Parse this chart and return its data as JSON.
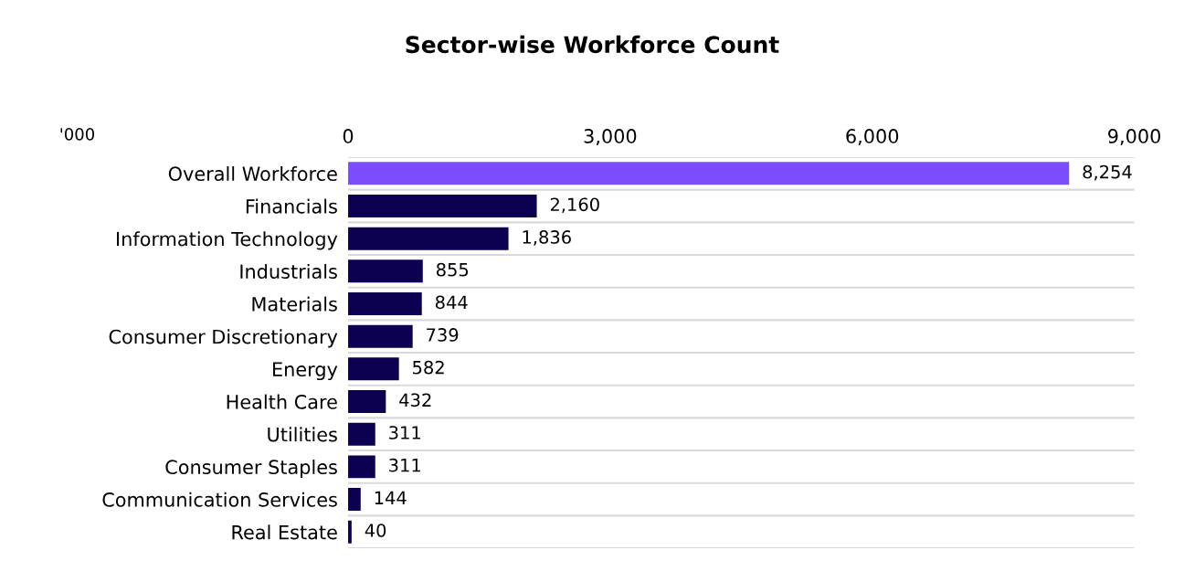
{
  "chart_data": {
    "type": "bar",
    "orientation": "horizontal",
    "title": "Sector-wise Workforce Count",
    "categories": [
      "Overall Workforce",
      "Financials",
      "Information Technology",
      "Industrials",
      "Materials",
      "Consumer Discretionary",
      "Energy",
      "Health Care",
      "Utilities",
      "Consumer Staples",
      "Communication Services",
      "Real Estate"
    ],
    "values": [
      8254,
      2160,
      1836,
      855,
      844,
      739,
      582,
      432,
      311,
      311,
      144,
      40
    ],
    "colors": [
      "#7b4dff",
      "#0c0050",
      "#0c0050",
      "#0c0050",
      "#0c0050",
      "#0c0050",
      "#0c0050",
      "#0c0050",
      "#0c0050",
      "#0c0050",
      "#0c0050",
      "#0c0050"
    ],
    "value_labels": [
      "8,254",
      "2,160",
      "1,836",
      "855",
      "844",
      "739",
      "582",
      "432",
      "311",
      "311",
      "144",
      "40"
    ],
    "xlim": [
      0,
      9000
    ],
    "xticks": [
      0,
      {
        "value": 3000,
        "label": "3,000"
      },
      {
        "value": 6000,
        "label": "6,000"
      },
      {
        "value": 9000,
        "label": "9,000"
      }
    ],
    "annotations": [
      "'000"
    ],
    "grid": "y",
    "legend": false
  }
}
